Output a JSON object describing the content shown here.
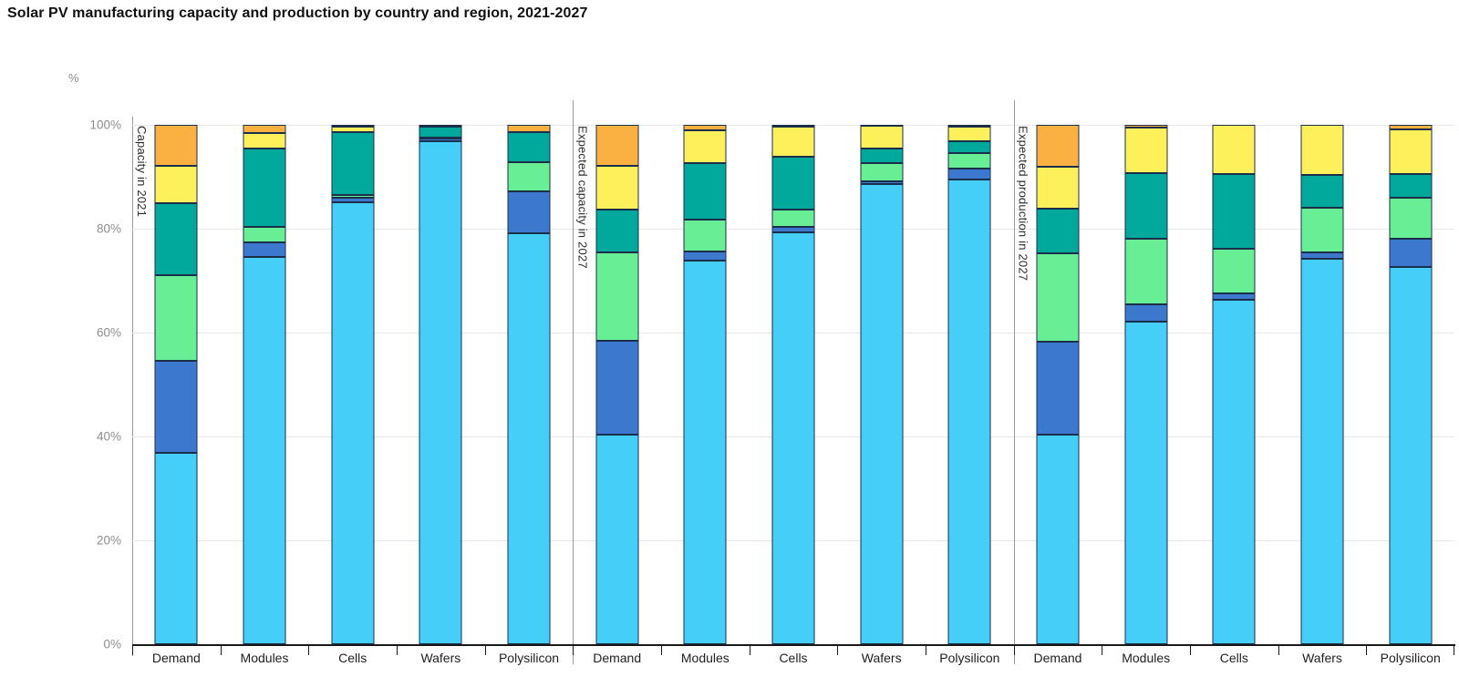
{
  "title": "Solar PV manufacturing capacity and production by country and region, 2021-2027",
  "y_axis": {
    "unit": "%",
    "ticks": [
      "100%",
      "80%",
      "60%",
      "40%",
      "20%",
      "0%"
    ]
  },
  "colors": {
    "sky_blue": "#45CEF8",
    "blue": "#3D78CF",
    "light_green": "#68EE95",
    "teal": "#00A99C",
    "yellow": "#FDF05A",
    "orange": "#FBB042",
    "segment_border": "#1b2f4b",
    "axis": "#1a1a1a",
    "gridline": "#e7e7e7",
    "divider": "#9b9b9b"
  },
  "chart_data": {
    "type": "bar",
    "stacked": true,
    "unit": "%",
    "title": "Solar PV manufacturing capacity and production by country and region, 2021-2027",
    "ylabel": "%",
    "ylim": [
      0,
      100
    ],
    "grid": true,
    "legend_visible": false,
    "note": "Series are stacked bottom-to-top; legend is not shown in the screenshot, series named by color.",
    "groups": [
      {
        "label": "Capacity in 2021",
        "categories": [
          "Demand",
          "Modules",
          "Cells",
          "Wafers",
          "Polysilicon"
        ],
        "series": [
          {
            "name": "Sky blue (bottom)",
            "color": "#45CEF8",
            "values": [
              36.8,
              74.5,
              85.1,
              96.8,
              79.1
            ]
          },
          {
            "name": "Blue",
            "color": "#3D78CF",
            "values": [
              17.7,
              2.9,
              0.9,
              0.6,
              8.1
            ]
          },
          {
            "name": "Light green",
            "color": "#68EE95",
            "values": [
              16.6,
              2.9,
              0.5,
              0.2,
              5.7
            ]
          },
          {
            "name": "Teal",
            "color": "#00A99C",
            "values": [
              13.9,
              15.2,
              12.1,
              2.0,
              5.7
            ]
          },
          {
            "name": "Yellow",
            "color": "#FDF05A",
            "values": [
              7.1,
              3.0,
              1.1,
              0.2,
              0.0
            ]
          },
          {
            "name": "Orange (top)",
            "color": "#FBB042",
            "values": [
              7.9,
              1.5,
              0.3,
              0.2,
              1.4
            ]
          }
        ]
      },
      {
        "label": "Expected capacity in 2027",
        "categories": [
          "Demand",
          "Modules",
          "Cells",
          "Wafers",
          "Polysilicon"
        ],
        "series": [
          {
            "name": "Sky blue (bottom)",
            "color": "#45CEF8",
            "values": [
              40.3,
              73.8,
              79.3,
              88.6,
              89.4
            ]
          },
          {
            "name": "Blue",
            "color": "#3D78CF",
            "values": [
              18.2,
              1.9,
              1.0,
              0.5,
              2.1
            ]
          },
          {
            "name": "Light green",
            "color": "#68EE95",
            "values": [
              17.0,
              6.0,
              3.4,
              3.5,
              3.1
            ]
          },
          {
            "name": "Teal",
            "color": "#00A99C",
            "values": [
              8.2,
              10.9,
              10.1,
              2.9,
              2.2
            ]
          },
          {
            "name": "Yellow",
            "color": "#FDF05A",
            "values": [
              8.4,
              6.3,
              5.8,
              4.3,
              2.8
            ]
          },
          {
            "name": "Orange (top)",
            "color": "#FBB042",
            "values": [
              7.9,
              1.1,
              0.4,
              0.2,
              0.4
            ]
          }
        ]
      },
      {
        "label": "Expected production in 2027",
        "categories": [
          "Demand",
          "Modules",
          "Cells",
          "Wafers",
          "Polysilicon"
        ],
        "series": [
          {
            "name": "Sky blue (bottom)",
            "color": "#45CEF8",
            "values": [
              40.3,
              62.1,
              66.4,
              74.3,
              72.7
            ]
          },
          {
            "name": "Blue",
            "color": "#3D78CF",
            "values": [
              17.9,
              3.3,
              1.1,
              1.1,
              5.4
            ]
          },
          {
            "name": "Light green",
            "color": "#68EE95",
            "values": [
              17.1,
              12.7,
              8.7,
              8.6,
              7.8
            ]
          },
          {
            "name": "Teal",
            "color": "#00A99C",
            "values": [
              8.5,
              12.6,
              14.4,
              6.4,
              4.6
            ]
          },
          {
            "name": "Yellow",
            "color": "#FDF05A",
            "values": [
              8.2,
              8.8,
              9.4,
              9.6,
              8.7
            ]
          },
          {
            "name": "Orange (top)",
            "color": "#FBB042",
            "values": [
              8.0,
              0.5,
              0.0,
              0.0,
              0.8
            ]
          }
        ]
      }
    ]
  }
}
